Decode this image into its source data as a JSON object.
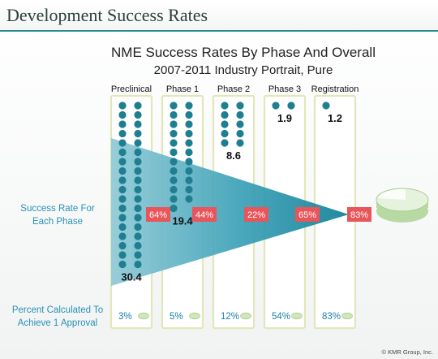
{
  "slide_title": "Development Success Rates",
  "credit": "© KMR Group, Inc.",
  "colors": {
    "dot": "#1f7f91",
    "funnel_light": "#8fc9d6",
    "funnel_dark": "#0f7f96",
    "rate_box": "#e8555a",
    "column_border": "#e3e6b9",
    "pill": "#cfe6b8"
  },
  "chart_data": {
    "type": "funnel",
    "title": "NME Success Rates By Phase And Overall",
    "subtitle": "2007-2011 Industry Portrait, Pure",
    "phases": [
      "Preclinical",
      "Phase 1",
      "Phase 2",
      "Phase 3",
      "Registration"
    ],
    "compounds_needed": [
      30.4,
      19.4,
      8.6,
      1.9,
      1.2
    ],
    "compounds_needed_labels": [
      "30.4",
      "19.4",
      "8.6",
      "1.9",
      "1.2"
    ],
    "success_rate_label": "Success Rate For Each Phase",
    "success_rates": [
      64,
      44,
      22,
      65,
      83
    ],
    "success_rate_labels": [
      "64%",
      "44%",
      "22%",
      "65%",
      "83%"
    ],
    "cumulative_label": "Percent Calculated To Achieve 1 Approval",
    "cumulative_percent": [
      3,
      5,
      12,
      54,
      83
    ],
    "cumulative_labels": [
      "3%",
      "5%",
      "12%",
      "54%",
      "83%"
    ]
  }
}
